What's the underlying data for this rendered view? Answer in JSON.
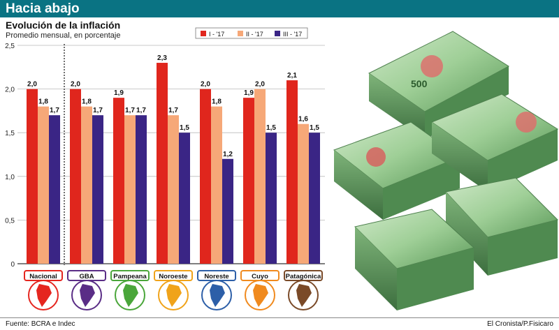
{
  "header": {
    "title": "Hacia abajo",
    "color": "#0a7383"
  },
  "chart_data": {
    "type": "bar",
    "title": "Evolución de la inflación",
    "subtitle": "Promedio mensual, en porcentaje",
    "categories": [
      "Nacional",
      "GBA",
      "Pampeana",
      "Noroeste",
      "Noreste",
      "Cuyo",
      "Patagónica"
    ],
    "region_colors": [
      "#e5261f",
      "#5a2d86",
      "#4aa63a",
      "#f0a31a",
      "#2d5fa8",
      "#f08a1e",
      "#7a4a28"
    ],
    "series": [
      {
        "name": "I - '17",
        "color": "#e0261d",
        "values": [
          2.0,
          2.0,
          1.9,
          2.3,
          2.0,
          1.9,
          2.1
        ],
        "labels": [
          "2,0",
          "2,0",
          "1,9",
          "2,3",
          "2,0",
          "1,9",
          "2,1"
        ]
      },
      {
        "name": "II - '17",
        "color": "#f6a878",
        "values": [
          1.8,
          1.8,
          1.7,
          1.7,
          1.8,
          2.0,
          1.6
        ],
        "labels": [
          "1,8",
          "1,8",
          "1,7",
          "1,7",
          "1,8",
          "2,0",
          "1,6"
        ]
      },
      {
        "name": "III - '17",
        "color": "#3a2585",
        "values": [
          1.7,
          1.7,
          1.7,
          1.5,
          1.2,
          1.5,
          1.5
        ],
        "labels": [
          "1,7",
          "1,7",
          "1,7",
          "1,5",
          "1,2",
          "1,5",
          "1,5"
        ]
      }
    ],
    "yticks": [
      0,
      0.5,
      1.0,
      1.5,
      2.0,
      2.5
    ],
    "ytick_labels": [
      "0",
      "0,5",
      "1,0",
      "1,5",
      "2,0",
      "2,5"
    ],
    "ylim": [
      0,
      2.5
    ],
    "grid": true,
    "legend_position": "top-right"
  },
  "footer": {
    "source": "Fuente: BCRA e Indec",
    "credit": "El Cronista/P.Fisicaro"
  },
  "photo": {
    "caption": "",
    "banknote_value": "500"
  }
}
